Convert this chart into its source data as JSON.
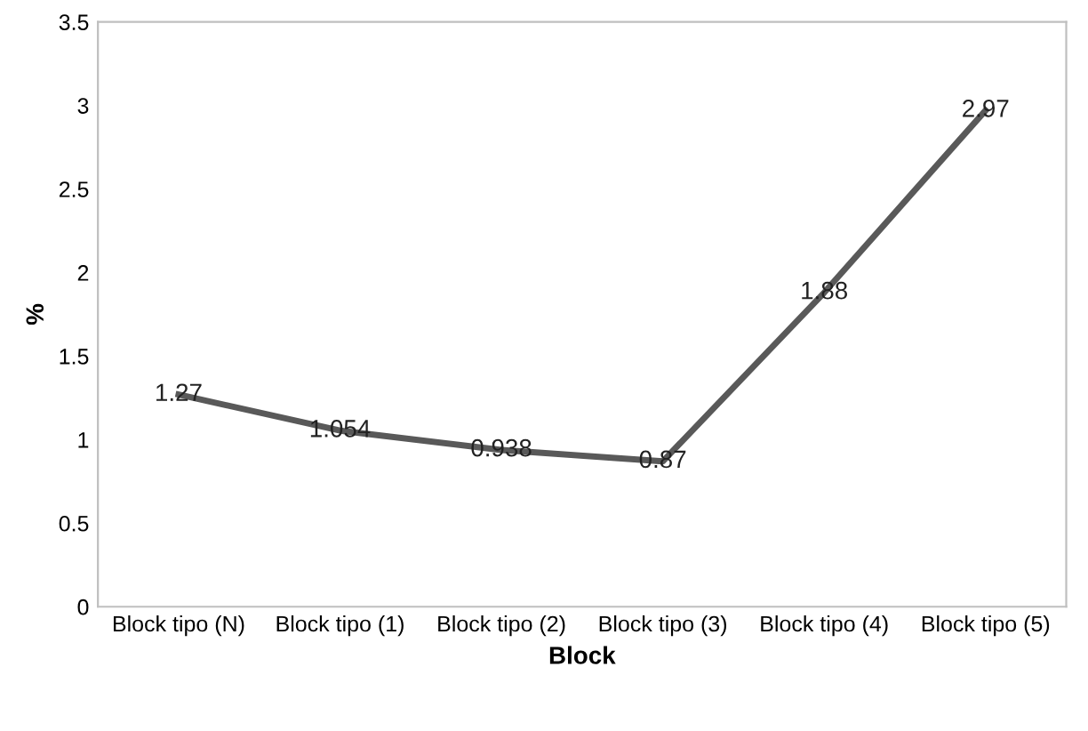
{
  "chart_data": {
    "type": "line",
    "xlabel": "Block",
    "ylabel": "%",
    "categories": [
      "Block tipo (N)",
      "Block tipo (1)",
      "Block tipo (2)",
      "Block tipo (3)",
      "Block tipo (4)",
      "Block tipo (5)"
    ],
    "series": [
      {
        "color": "#595959",
        "values": [
          1.27,
          1.054,
          0.938,
          0.87,
          1.88,
          2.97
        ]
      }
    ],
    "ylim": [
      0,
      3.5
    ],
    "yticks": [
      0,
      0.5,
      1,
      1.5,
      2,
      2.5,
      3,
      3.5
    ],
    "data_labels": true,
    "grid": false,
    "legend": false,
    "marker": "none",
    "line_style": "solid"
  }
}
